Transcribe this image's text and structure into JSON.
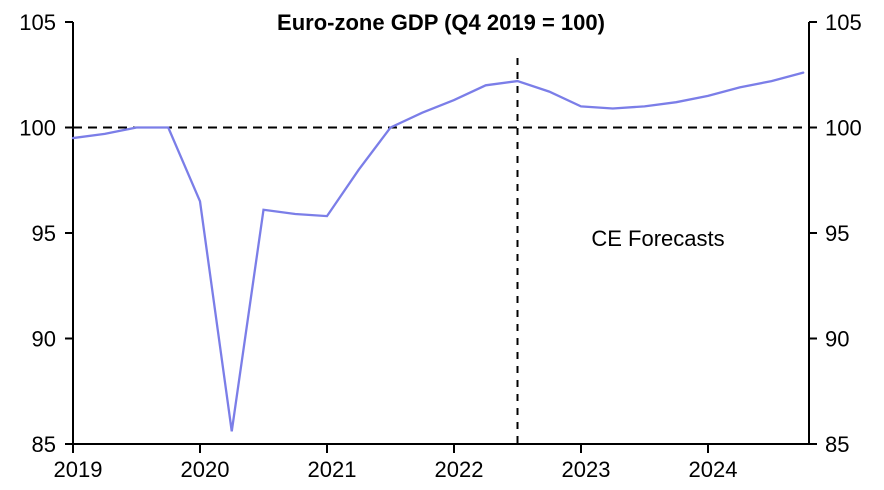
{
  "chart_data": {
    "type": "line",
    "title": "Euro-zone GDP (Q4 2019 = 100)",
    "annotation": "CE Forecasts",
    "frequency": "quarterly",
    "quarters": [
      "2019 Q1",
      "2019 Q2",
      "2019 Q3",
      "2019 Q4",
      "2020 Q1",
      "2020 Q2",
      "2020 Q3",
      "2020 Q4",
      "2021 Q1",
      "2021 Q2",
      "2021 Q3",
      "2021 Q4",
      "2022 Q1",
      "2022 Q2",
      "2022 Q3",
      "2022 Q4",
      "2023 Q1",
      "2023 Q2",
      "2023 Q3",
      "2023 Q4",
      "2024 Q1",
      "2024 Q2",
      "2024 Q3",
      "2024 Q4"
    ],
    "series": [
      {
        "name": "Euro-zone GDP index",
        "values": [
          99.5,
          99.7,
          100.0,
          100.0,
          96.5,
          85.6,
          96.1,
          95.9,
          95.8,
          98.0,
          100.0,
          100.7,
          101.3,
          102.0,
          102.2,
          101.7,
          101.0,
          100.9,
          101.0,
          101.2,
          101.5,
          101.9,
          102.2,
          102.6
        ]
      }
    ],
    "ylim": [
      85,
      105
    ],
    "y_ticks": [
      105,
      100,
      95,
      90,
      85
    ],
    "x_tick_labels": [
      "2019",
      "2020",
      "2021",
      "2022",
      "2023",
      "2024"
    ],
    "reference_line_y": 100,
    "forecast_divider_quarter": "2022 Q3",
    "grid": "off",
    "legend": "none",
    "colors": {
      "line": "#7B7EE8",
      "axis": "#000000",
      "dashed": "#000000",
      "background": "#FFFFFF"
    }
  }
}
